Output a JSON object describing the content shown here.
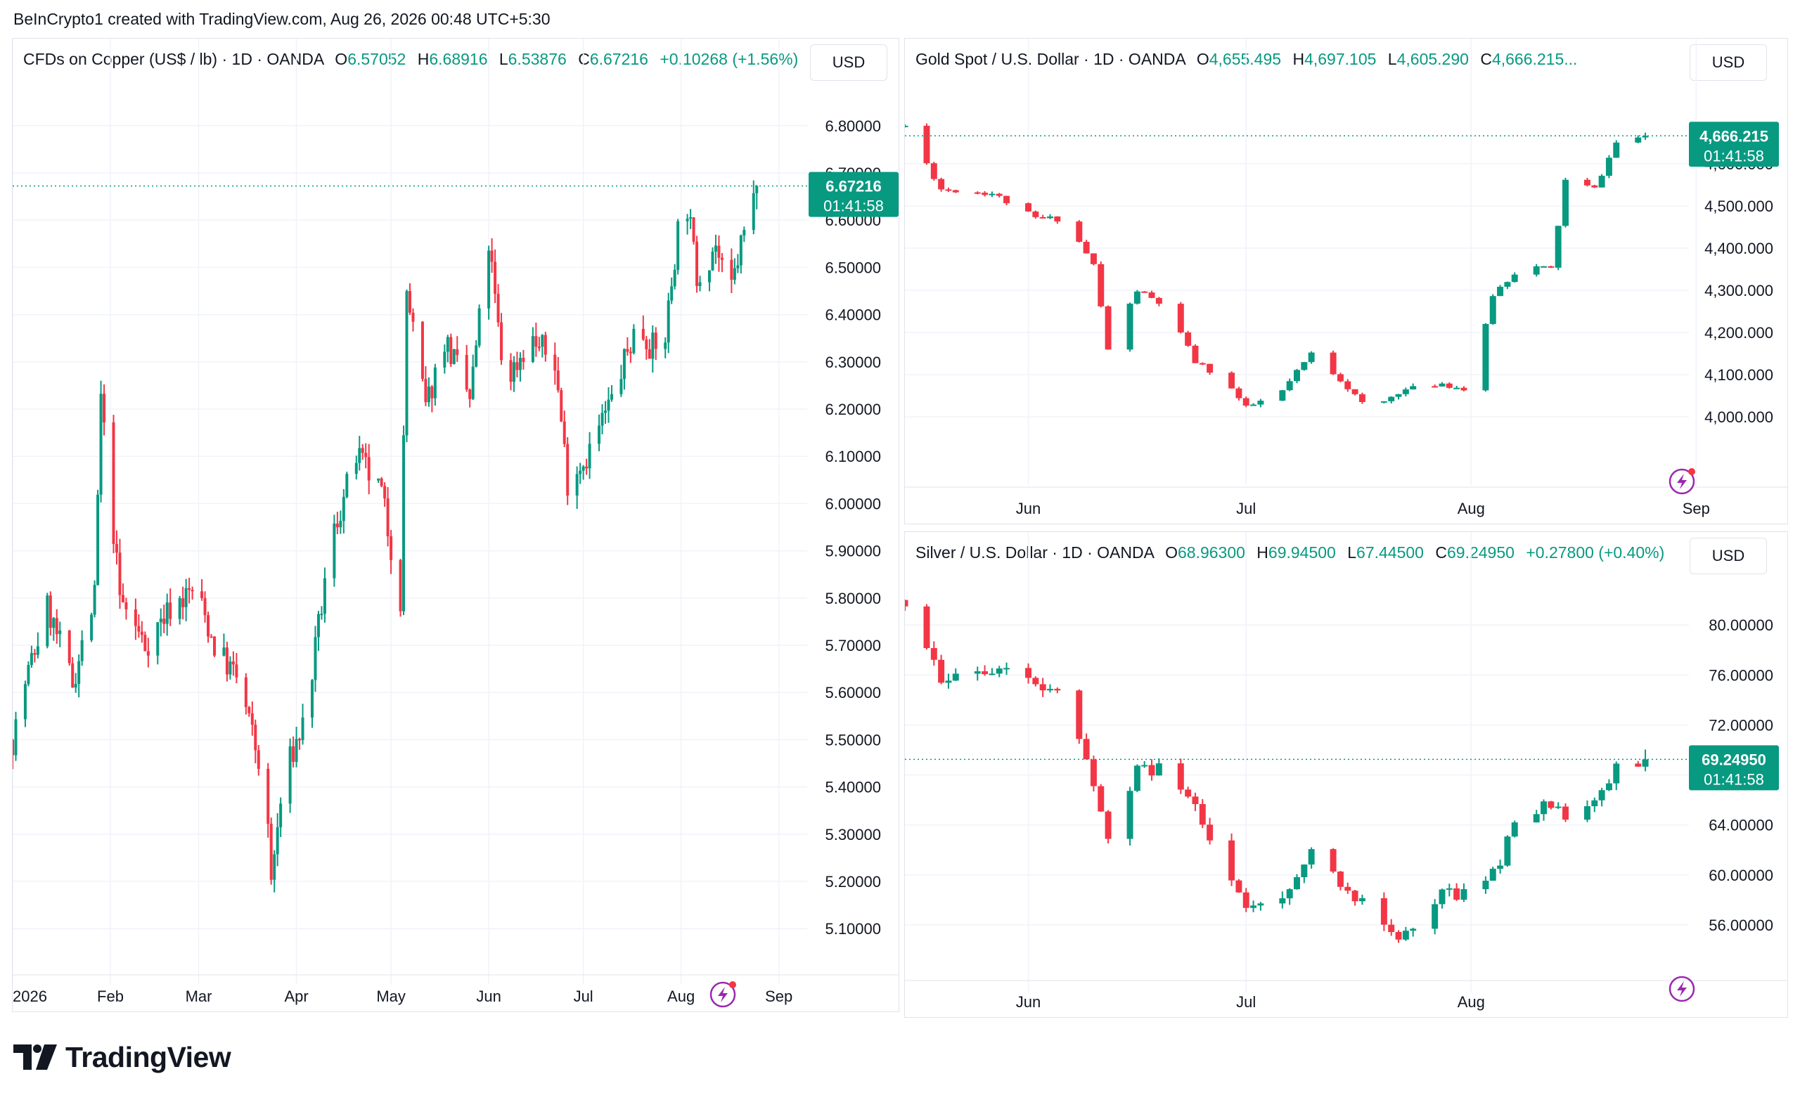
{
  "credit": "BeInCrypto1 created with TradingView.com, Aug 26, 2026 00:48 UTC+5:30",
  "brand": "TradingView",
  "colors": {
    "up": "#089981",
    "down": "#f23645",
    "grid": "#f0f3fa",
    "badge": "#089981",
    "bolt": "#9c27b0",
    "dot": "#f23645"
  },
  "charts": [
    {
      "id": "copper",
      "symbol": "CFDs on Copper (US$ / lb) · 1D · OANDA",
      "open_label": "O",
      "open": "6.57052",
      "high_label": "H",
      "high": "6.68916",
      "low_label": "L",
      "low": "6.53876",
      "close_label": "C",
      "close": "6.67216",
      "change": "+0.10268 (+1.56%)",
      "currency": "USD",
      "price_badge": "6.67216",
      "countdown": "01:41:58",
      "y_ticks": [
        "6.80000",
        "6.70000",
        "6.60000",
        "6.50000",
        "6.40000",
        "6.30000",
        "6.20000",
        "6.10000",
        "6.00000",
        "5.90000",
        "5.80000",
        "5.70000",
        "5.60000",
        "5.50000",
        "5.40000",
        "5.30000",
        "5.20000",
        "5.10000"
      ],
      "x_ticks": [
        "2026",
        "Feb",
        "Mar",
        "Apr",
        "May",
        "Jun",
        "Jul",
        "Aug",
        "Sep"
      ]
    },
    {
      "id": "gold",
      "symbol": "Gold Spot / U.S. Dollar · 1D · OANDA",
      "open_label": "O",
      "open": "4,655.495",
      "high_label": "H",
      "high": "4,697.105",
      "low_label": "L",
      "low": "4,605.290",
      "close_label": "C",
      "close": "4,666.215...",
      "change": "",
      "currency": "USD",
      "price_badge": "4,666.215",
      "countdown": "01:41:58",
      "y_ticks": [
        "4,600.000",
        "4,500.000",
        "4,400.000",
        "4,300.000",
        "4,200.000",
        "4,100.000",
        "4,000.000"
      ],
      "x_ticks": [
        "Jun",
        "Jul",
        "Aug",
        "Sep"
      ]
    },
    {
      "id": "silver",
      "symbol": "Silver / U.S. Dollar · 1D · OANDA",
      "open_label": "O",
      "open": "68.96300",
      "high_label": "H",
      "high": "69.94500",
      "low_label": "L",
      "low": "67.44500",
      "close_label": "C",
      "close": "69.24950",
      "change": "+0.27800 (+0.40%)",
      "currency": "USD",
      "price_badge": "69.24950",
      "countdown": "01:41:58",
      "y_ticks": [
        "80.00000",
        "76.00000",
        "72.00000",
        "68.00000",
        "64.00000",
        "60.00000",
        "56.00000"
      ],
      "x_ticks": [
        "Jun",
        "Jul",
        "Aug"
      ]
    }
  ],
  "chart_data": [
    {
      "type": "candlestick",
      "title": "CFDs on Copper (US$ / lb) · 1D · OANDA",
      "ylim": [
        5.02,
        6.88
      ],
      "x_range": [
        "2026-01-01",
        "2026-09-10"
      ],
      "shape_keypoints": {
        "dates": [
          "2026-01-01",
          "2026-01-05",
          "2026-01-12",
          "2026-01-20",
          "2026-01-27",
          "2026-01-29",
          "2026-02-04",
          "2026-02-12",
          "2026-02-20",
          "2026-02-28",
          "2026-03-06",
          "2026-03-14",
          "2026-03-22",
          "2026-03-24",
          "2026-03-28",
          "2026-04-04",
          "2026-04-12",
          "2026-04-20",
          "2026-04-28",
          "2026-05-04",
          "2026-05-06",
          "2026-05-12",
          "2026-05-18",
          "2026-05-26",
          "2026-06-01",
          "2026-06-06",
          "2026-06-14",
          "2026-06-22",
          "2026-06-26",
          "2026-07-02",
          "2026-07-10",
          "2026-07-18",
          "2026-07-26",
          "2026-07-31",
          "2026-08-02",
          "2026-08-06",
          "2026-08-12",
          "2026-08-16",
          "2026-08-20",
          "2026-08-25"
        ],
        "closes": [
          5.5,
          5.62,
          5.78,
          5.62,
          5.8,
          6.22,
          5.8,
          5.7,
          5.78,
          5.82,
          5.7,
          5.62,
          5.4,
          5.2,
          5.42,
          5.55,
          5.92,
          6.1,
          6.02,
          5.8,
          6.45,
          6.2,
          6.35,
          6.22,
          6.55,
          6.25,
          6.35,
          6.3,
          6.05,
          6.1,
          6.22,
          6.38,
          6.3,
          6.58,
          6.68,
          6.48,
          6.55,
          6.42,
          6.55,
          6.67
        ]
      },
      "last_close": 6.67216
    },
    {
      "type": "candlestick",
      "title": "Gold Spot / U.S. Dollar · 1D · OANDA",
      "ylim": [
        3880,
        4780
      ],
      "x_range": [
        "2026-05-15",
        "2026-08-31"
      ],
      "shape_keypoints": {
        "dates": [
          "2026-05-15",
          "2026-05-20",
          "2026-05-27",
          "2026-06-02",
          "2026-06-06",
          "2026-06-10",
          "2026-06-12",
          "2026-06-16",
          "2026-06-20",
          "2026-06-24",
          "2026-06-28",
          "2026-07-01",
          "2026-07-06",
          "2026-07-10",
          "2026-07-14",
          "2026-07-18",
          "2026-07-22",
          "2026-07-28",
          "2026-08-01",
          "2026-08-04",
          "2026-08-08",
          "2026-08-12",
          "2026-08-14",
          "2026-08-18",
          "2026-08-21",
          "2026-08-25"
        ],
        "closes": [
          4690,
          4540,
          4530,
          4470,
          4470,
          4360,
          4160,
          4300,
          4260,
          4130,
          4090,
          4020,
          4060,
          4150,
          4090,
          4010,
          4060,
          4080,
          4060,
          4290,
          4360,
          4350,
          4560,
          4540,
          4650,
          4666
        ]
      },
      "last_close": 4666.215
    },
    {
      "type": "candlestick",
      "title": "Silver / U.S. Dollar · 1D · OANDA",
      "ylim": [
        52.0,
        83.5
      ],
      "x_range": [
        "2026-05-15",
        "2026-08-31"
      ],
      "shape_keypoints": {
        "dates": [
          "2026-05-15",
          "2026-05-20",
          "2026-05-27",
          "2026-06-02",
          "2026-06-06",
          "2026-06-10",
          "2026-06-12",
          "2026-06-16",
          "2026-06-20",
          "2026-06-24",
          "2026-06-28",
          "2026-07-01",
          "2026-07-06",
          "2026-07-10",
          "2026-07-14",
          "2026-07-18",
          "2026-07-22",
          "2026-07-28",
          "2026-08-01",
          "2026-08-04",
          "2026-08-08",
          "2026-08-12",
          "2026-08-14",
          "2026-08-18",
          "2026-08-21",
          "2026-08-25"
        ],
        "closes": [
          82.0,
          76.0,
          76.5,
          75.0,
          74.0,
          67.0,
          63.5,
          68.5,
          68.5,
          66.0,
          60.5,
          57.0,
          58.5,
          62.0,
          59.0,
          58.0,
          55.0,
          58.5,
          58.5,
          60.0,
          65.0,
          65.5,
          64.5,
          66.0,
          68.5,
          69.25
        ]
      },
      "last_close": 69.2495
    }
  ]
}
